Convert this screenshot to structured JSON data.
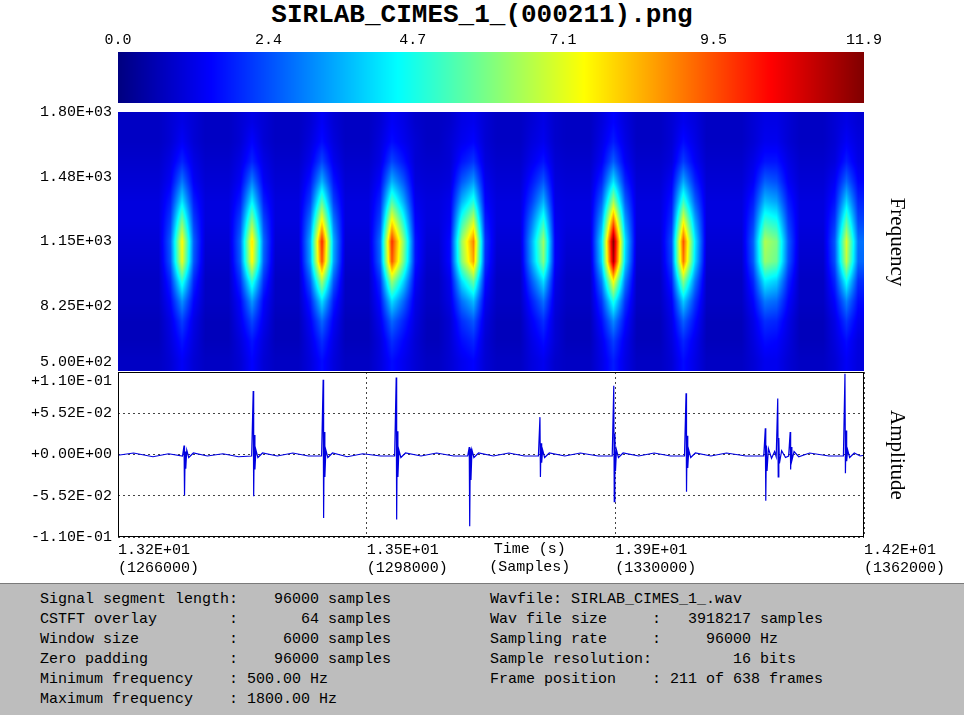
{
  "title": "SIRLAB_CIMES_1_(000211).png",
  "chart_data": [
    {
      "type": "heatmap",
      "ylabel": "Frequency",
      "xlim": [
        1266000,
        1362000
      ],
      "ylim": [
        500,
        1800
      ],
      "yticks": [
        {
          "value": 500,
          "label": "5.00E+02"
        },
        {
          "value": 825,
          "label": "8.25E+02"
        },
        {
          "value": 1150,
          "label": "1.15E+03"
        },
        {
          "value": 1475,
          "label": "1.48E+03"
        },
        {
          "value": 1800,
          "label": "1.80E+03"
        }
      ],
      "tick_labels": "y",
      "color": "jet",
      "colorbar": {
        "range": [
          0,
          11.9
        ],
        "ticks": [
          {
            "value": 0,
            "label": "0.0"
          },
          2.4,
          4.7,
          7.1,
          9.5,
          11.9
        ]
      },
      "cells": [
        [
          0.8,
          0.8,
          0.8,
          0.8,
          1.0,
          1.2,
          1.0,
          0.8,
          0.8,
          0.8,
          1.0,
          1.2,
          1.0,
          0.8,
          0.8,
          0.8,
          1.0,
          1.4,
          1.0,
          0.8,
          0.8,
          0.8,
          1.0,
          1.4,
          1.2,
          0.9,
          0.8,
          0.8,
          0.9,
          1.2,
          1.3,
          1.0,
          0.8,
          0.8,
          0.8,
          1.0,
          1.2,
          0.9,
          0.8,
          0.8,
          0.8,
          1.1,
          1.5,
          1.1,
          0.8,
          0.8,
          0.8,
          1.0,
          1.3,
          1.1,
          0.8,
          0.8,
          0.8,
          0.8,
          1.0,
          1.2,
          1.2,
          1.0,
          0.8,
          0.8,
          0.8,
          1.0,
          1.2,
          1.0
        ],
        [
          0.8,
          0.8,
          0.8,
          0.8,
          1.0,
          1.4,
          1.0,
          0.8,
          0.8,
          0.8,
          1.0,
          1.5,
          1.0,
          0.8,
          0.8,
          0.8,
          1.1,
          1.6,
          1.1,
          0.8,
          0.8,
          0.8,
          1.1,
          1.6,
          1.3,
          1.0,
          0.8,
          0.8,
          1.0,
          1.3,
          1.5,
          1.0,
          0.8,
          0.8,
          0.8,
          1.1,
          1.3,
          0.9,
          0.8,
          0.8,
          0.8,
          1.2,
          1.8,
          1.2,
          0.8,
          0.8,
          0.8,
          1.0,
          1.6,
          1.2,
          0.8,
          0.8,
          0.8,
          0.8,
          1.0,
          1.3,
          1.3,
          1.0,
          0.8,
          0.8,
          0.8,
          1.0,
          1.4,
          1.1
        ],
        [
          0.9,
          0.9,
          0.9,
          0.9,
          1.2,
          1.9,
          1.2,
          0.9,
          0.9,
          0.9,
          1.2,
          1.9,
          1.2,
          0.9,
          0.9,
          0.9,
          1.3,
          2.3,
          1.3,
          0.9,
          0.9,
          0.9,
          1.2,
          2.3,
          1.7,
          1.0,
          0.9,
          0.9,
          1.0,
          1.7,
          2.1,
          1.1,
          0.9,
          0.9,
          0.9,
          1.3,
          1.7,
          1.0,
          0.9,
          0.9,
          0.9,
          1.4,
          2.6,
          1.4,
          0.9,
          0.9,
          0.9,
          1.1,
          2.2,
          1.4,
          0.9,
          0.9,
          0.9,
          0.9,
          1.2,
          1.7,
          1.7,
          1.2,
          0.9,
          0.9,
          0.9,
          1.1,
          1.8,
          1.2
        ],
        [
          1.0,
          1.0,
          1.0,
          1.0,
          1.4,
          2.9,
          1.4,
          1.0,
          1.0,
          1.0,
          1.4,
          3.0,
          1.4,
          1.0,
          1.0,
          1.0,
          1.7,
          3.6,
          1.7,
          1.0,
          1.0,
          1.0,
          1.5,
          3.6,
          2.5,
          1.1,
          1.0,
          1.0,
          1.1,
          2.5,
          3.3,
          1.3,
          1.0,
          1.0,
          1.0,
          1.7,
          2.5,
          1.1,
          1.0,
          1.0,
          1.0,
          1.9,
          4.2,
          1.9,
          1.0,
          1.0,
          1.0,
          1.4,
          3.5,
          1.9,
          1.0,
          1.0,
          1.0,
          1.0,
          1.4,
          2.6,
          2.4,
          1.4,
          1.0,
          1.0,
          1.0,
          1.4,
          2.7,
          1.5
        ],
        [
          1.1,
          1.1,
          1.1,
          1.1,
          1.8,
          4.2,
          1.8,
          1.1,
          1.1,
          1.1,
          1.8,
          4.4,
          1.8,
          1.1,
          1.1,
          1.1,
          2.2,
          5.5,
          2.2,
          1.1,
          1.1,
          1.1,
          1.9,
          5.4,
          3.5,
          1.3,
          1.1,
          1.1,
          1.3,
          3.6,
          4.9,
          1.5,
          1.1,
          1.1,
          1.1,
          2.2,
          3.6,
          1.2,
          1.1,
          1.1,
          1.1,
          2.6,
          6.4,
          2.6,
          1.1,
          1.1,
          1.1,
          1.7,
          5.2,
          2.6,
          1.1,
          1.1,
          1.1,
          1.1,
          1.8,
          3.7,
          3.4,
          1.8,
          1.1,
          1.1,
          1.1,
          1.7,
          4.0,
          1.9
        ],
        [
          1.1,
          1.1,
          1.1,
          1.1,
          2.2,
          5.9,
          2.2,
          1.1,
          1.1,
          1.1,
          2.3,
          6.1,
          2.3,
          1.1,
          1.1,
          1.1,
          2.9,
          7.7,
          2.9,
          1.1,
          1.1,
          1.1,
          2.3,
          7.7,
          4.8,
          1.5,
          1.1,
          1.1,
          1.4,
          5.0,
          6.9,
          1.8,
          1.1,
          1.1,
          1.1,
          2.9,
          5.0,
          1.3,
          1.1,
          1.1,
          1.1,
          3.4,
          9.2,
          3.4,
          1.1,
          1.1,
          1.1,
          2.0,
          7.4,
          3.5,
          1.1,
          1.1,
          1.1,
          1.1,
          2.2,
          5.1,
          4.7,
          2.2,
          1.1,
          1.1,
          1.1,
          2.1,
          5.5,
          2.3
        ],
        [
          1.0,
          1.0,
          1.0,
          1.0,
          2.6,
          7.5,
          2.6,
          1.0,
          1.0,
          1.0,
          2.7,
          7.8,
          2.7,
          1.0,
          1.0,
          1.0,
          3.5,
          10.0,
          3.5,
          1.0,
          1.0,
          1.0,
          2.8,
          9.9,
          6.1,
          1.7,
          1.0,
          1.0,
          1.6,
          6.3,
          8.9,
          2.1,
          1.0,
          1.0,
          1.0,
          3.5,
          6.3,
          1.4,
          1.0,
          1.0,
          1.0,
          4.2,
          11.9,
          4.2,
          1.0,
          1.0,
          1.0,
          2.4,
          9.5,
          4.3,
          1.0,
          1.0,
          1.0,
          1.0,
          2.6,
          6.5,
          5.9,
          2.6,
          1.0,
          1.0,
          1.0,
          2.5,
          7.0,
          2.8
        ],
        [
          0.9,
          0.9,
          0.9,
          0.9,
          2.5,
          7.2,
          2.5,
          0.9,
          0.9,
          0.9,
          2.6,
          7.5,
          2.6,
          0.9,
          0.9,
          0.9,
          3.4,
          9.5,
          3.4,
          0.9,
          0.9,
          0.9,
          2.7,
          9.5,
          5.8,
          1.7,
          0.9,
          0.9,
          1.6,
          6.0,
          8.5,
          2.0,
          0.9,
          0.9,
          0.9,
          3.4,
          6.0,
          1.4,
          0.9,
          0.9,
          0.9,
          4.0,
          11.4,
          4.0,
          0.9,
          0.9,
          0.9,
          2.3,
          9.1,
          4.1,
          0.9,
          0.9,
          0.9,
          0.9,
          2.5,
          6.2,
          5.7,
          2.5,
          0.9,
          0.9,
          0.9,
          2.4,
          6.7,
          2.7
        ],
        [
          0.8,
          0.8,
          0.8,
          0.8,
          1.9,
          4.9,
          1.9,
          0.8,
          0.8,
          0.8,
          2.0,
          5.0,
          2.0,
          0.8,
          0.8,
          0.8,
          2.5,
          6.4,
          2.5,
          0.8,
          0.8,
          0.8,
          2.0,
          6.3,
          4.0,
          1.4,
          0.8,
          0.8,
          1.3,
          4.1,
          5.7,
          1.6,
          0.8,
          0.8,
          0.8,
          2.5,
          4.1,
          1.2,
          0.8,
          0.8,
          0.8,
          2.9,
          7.5,
          2.9,
          0.8,
          0.8,
          0.8,
          1.8,
          6.1,
          2.9,
          0.8,
          0.8,
          0.8,
          0.8,
          1.9,
          4.3,
          3.9,
          1.9,
          0.8,
          0.8,
          0.8,
          1.9,
          4.6,
          2.0
        ],
        [
          0.8,
          0.8,
          0.8,
          0.8,
          1.5,
          3.2,
          1.5,
          0.8,
          0.8,
          0.8,
          1.5,
          3.3,
          1.5,
          0.8,
          0.8,
          0.8,
          1.8,
          4.1,
          1.8,
          0.8,
          0.8,
          0.8,
          1.6,
          4.1,
          2.7,
          1.2,
          0.8,
          0.8,
          1.2,
          2.8,
          3.7,
          1.3,
          0.8,
          0.8,
          0.8,
          1.8,
          2.8,
          1.1,
          0.8,
          0.8,
          0.8,
          2.1,
          4.8,
          2.1,
          0.8,
          0.8,
          0.8,
          1.4,
          3.9,
          2.1,
          0.8,
          0.8,
          0.8,
          0.8,
          1.5,
          2.9,
          2.7,
          1.5,
          0.8,
          0.8,
          0.8,
          1.5,
          3.0,
          1.6
        ],
        [
          0.7,
          0.7,
          0.7,
          0.7,
          1.2,
          2.2,
          1.2,
          0.7,
          0.7,
          0.7,
          1.3,
          2.3,
          1.3,
          0.7,
          0.7,
          0.7,
          1.4,
          2.7,
          1.4,
          0.7,
          0.7,
          0.7,
          1.3,
          2.7,
          1.9,
          1.1,
          0.7,
          0.7,
          1.0,
          2.0,
          2.5,
          1.1,
          0.7,
          0.7,
          0.7,
          1.4,
          2.0,
          1.0,
          0.7,
          0.7,
          0.7,
          1.6,
          3.1,
          1.6,
          0.7,
          0.7,
          0.7,
          1.2,
          2.6,
          1.6,
          0.7,
          0.7,
          0.7,
          0.7,
          1.2,
          2.0,
          1.9,
          1.2,
          0.7,
          0.7,
          0.7,
          1.2,
          2.1,
          1.3
        ],
        [
          0.7,
          0.7,
          0.7,
          0.7,
          1.1,
          1.7,
          1.1,
          0.7,
          0.7,
          0.7,
          1.1,
          1.7,
          1.1,
          0.7,
          0.7,
          0.7,
          1.2,
          2.0,
          1.2,
          0.7,
          0.7,
          0.7,
          1.1,
          2.0,
          1.5,
          1.0,
          0.7,
          0.7,
          1.0,
          1.6,
          1.9,
          1.0,
          0.7,
          0.7,
          0.7,
          1.2,
          1.6,
          1.0,
          0.7,
          0.7,
          0.7,
          1.3,
          2.2,
          1.3,
          0.7,
          0.7,
          0.7,
          1.1,
          1.9,
          1.3,
          0.7,
          0.7,
          0.7,
          0.7,
          1.1,
          1.6,
          1.5,
          1.1,
          0.7,
          0.7,
          0.7,
          1.1,
          1.6,
          1.1
        ],
        [
          0.8,
          0.8,
          0.8,
          0.8,
          1.0,
          1.4,
          1.0,
          0.8,
          0.8,
          0.8,
          1.0,
          1.5,
          1.0,
          0.8,
          0.8,
          0.8,
          1.1,
          1.6,
          1.1,
          0.8,
          0.8,
          0.8,
          1.1,
          1.6,
          1.3,
          1.0,
          0.8,
          0.8,
          1.0,
          1.3,
          1.5,
          1.0,
          0.8,
          0.8,
          0.8,
          1.1,
          1.3,
          0.9,
          0.8,
          0.8,
          0.8,
          1.2,
          1.8,
          1.2,
          0.8,
          0.8,
          0.8,
          1.0,
          1.6,
          1.2,
          0.8,
          0.8,
          0.8,
          0.8,
          1.0,
          1.3,
          1.3,
          1.0,
          0.8,
          0.8,
          0.8,
          1.0,
          1.4,
          1.1
        ]
      ]
    },
    {
      "type": "line",
      "ylabel": "Amplitude",
      "xlabel": [
        "Time (s)",
        "(Samples)"
      ],
      "xlim": [
        1266000,
        1362000
      ],
      "ylim": [
        -0.1104,
        0.1104
      ],
      "xticks": [
        {
          "value": 1266000,
          "label": [
            "1.32E+01",
            "(1266000)"
          ]
        },
        {
          "value": 1298000,
          "label": [
            "1.35E+01",
            "(1298000)"
          ]
        },
        {
          "value": 1330000,
          "label": [
            "1.39E+01",
            "(1330000)"
          ]
        },
        {
          "value": 1362000,
          "label": [
            "1.42E+01",
            "(1362000)"
          ]
        }
      ],
      "yticks": [
        {
          "value": -0.1104,
          "label": "-1.10E-01"
        },
        {
          "value": -0.0552,
          "label": "-5.52E-02"
        },
        {
          "value": 0,
          "label": "+0.00E+00"
        },
        {
          "value": 0.0552,
          "label": "+5.52E-02"
        },
        {
          "value": 0.1104,
          "label": "+1.10E-01"
        }
      ],
      "grid": true,
      "color": "#0000e0",
      "x": [
        1266000,
        1268000,
        1270500,
        1272500,
        1274300,
        1274500,
        1274560,
        1274640,
        1274720,
        1274850,
        1275100,
        1275700,
        1277500,
        1279500,
        1281500,
        1283200,
        1283400,
        1283460,
        1283540,
        1283620,
        1283750,
        1284000,
        1284600,
        1286500,
        1288500,
        1290500,
        1292200,
        1292400,
        1292460,
        1292540,
        1292620,
        1292750,
        1293000,
        1293600,
        1295500,
        1297500,
        1299800,
        1301600,
        1301800,
        1301860,
        1301940,
        1302020,
        1302150,
        1302400,
        1303000,
        1305000,
        1307000,
        1309200,
        1311000,
        1311200,
        1311260,
        1311340,
        1311420,
        1311550,
        1311800,
        1312400,
        1314300,
        1316300,
        1318300,
        1320100,
        1320300,
        1320360,
        1320440,
        1320520,
        1320650,
        1320900,
        1321500,
        1323500,
        1325500,
        1327800,
        1329600,
        1329800,
        1329860,
        1329940,
        1330020,
        1330150,
        1330400,
        1331000,
        1333000,
        1335000,
        1337100,
        1338900,
        1339100,
        1339160,
        1339240,
        1339320,
        1339450,
        1339700,
        1340300,
        1342300,
        1344300,
        1346800,
        1349100,
        1349300,
        1349360,
        1349440,
        1349520,
        1349700,
        1350100,
        1350500,
        1350700,
        1350900,
        1350960,
        1351040,
        1351120,
        1351400,
        1351900,
        1352300,
        1352500,
        1352560,
        1352640,
        1352720,
        1353000,
        1353600,
        1355000,
        1357500,
        1359350,
        1359550,
        1359610,
        1359690,
        1359770,
        1359900,
        1360150,
        1360750,
        1361500,
        1362000
      ],
      "values": [
        -0.001,
        0.002,
        -0.003,
        0.001,
        -0.002,
        0.012,
        -0.055,
        0.004,
        -0.019,
        0.006,
        -0.004,
        0.002,
        -0.002,
        0.001,
        -0.003,
        -0.002,
        0.085,
        -0.056,
        0.026,
        -0.02,
        0.006,
        -0.004,
        0.002,
        -0.002,
        0.002,
        -0.002,
        -0.002,
        0.1,
        -0.085,
        0.03,
        -0.03,
        0.006,
        -0.004,
        0.002,
        -0.003,
        0.001,
        -0.002,
        -0.002,
        0.103,
        -0.087,
        0.031,
        -0.03,
        0.006,
        -0.004,
        0.002,
        -0.002,
        0.002,
        -0.002,
        -0.002,
        0.01,
        -0.096,
        0.008,
        -0.034,
        0.006,
        -0.004,
        0.002,
        -0.002,
        0.002,
        -0.002,
        -0.002,
        0.05,
        -0.03,
        0.015,
        -0.011,
        0.006,
        -0.004,
        0.002,
        -0.002,
        0.002,
        -0.002,
        -0.002,
        0.092,
        -0.063,
        0.028,
        -0.022,
        0.006,
        -0.004,
        0.002,
        -0.002,
        0.002,
        -0.002,
        -0.002,
        0.082,
        -0.05,
        0.025,
        -0.018,
        0.006,
        -0.004,
        0.002,
        -0.002,
        0.002,
        -0.002,
        -0.002,
        0.035,
        -0.062,
        0.012,
        -0.022,
        0.008,
        -0.005,
        0.004,
        -0.003,
        0.075,
        -0.03,
        0.022,
        -0.012,
        0.005,
        -0.004,
        -0.002,
        0.03,
        -0.02,
        0.01,
        -0.008,
        0.004,
        -0.003,
        0.002,
        -0.002,
        -0.002,
        0.108,
        -0.025,
        0.032,
        -0.009,
        0.006,
        -0.004,
        0.002,
        -0.002,
        -0.001
      ]
    }
  ],
  "info_panel": {
    "left": [
      "Signal segment length:    96000 samples",
      "CSTFT overlay        :       64 samples",
      "Window size          :     6000 samples",
      "Zero padding         :    96000 samples",
      "Minimum frequency    : 500.00 Hz",
      "Maximum frequency    : 1800.00 Hz"
    ],
    "right": [
      "Wavfile: SIRLAB_CIMES_1_.wav",
      "Wav file size     :   3918217 samples",
      "Sampling rate     :     96000 Hz",
      "Sample resolution:         16 bits",
      "Frame position    : 211 of 638 frames"
    ]
  }
}
